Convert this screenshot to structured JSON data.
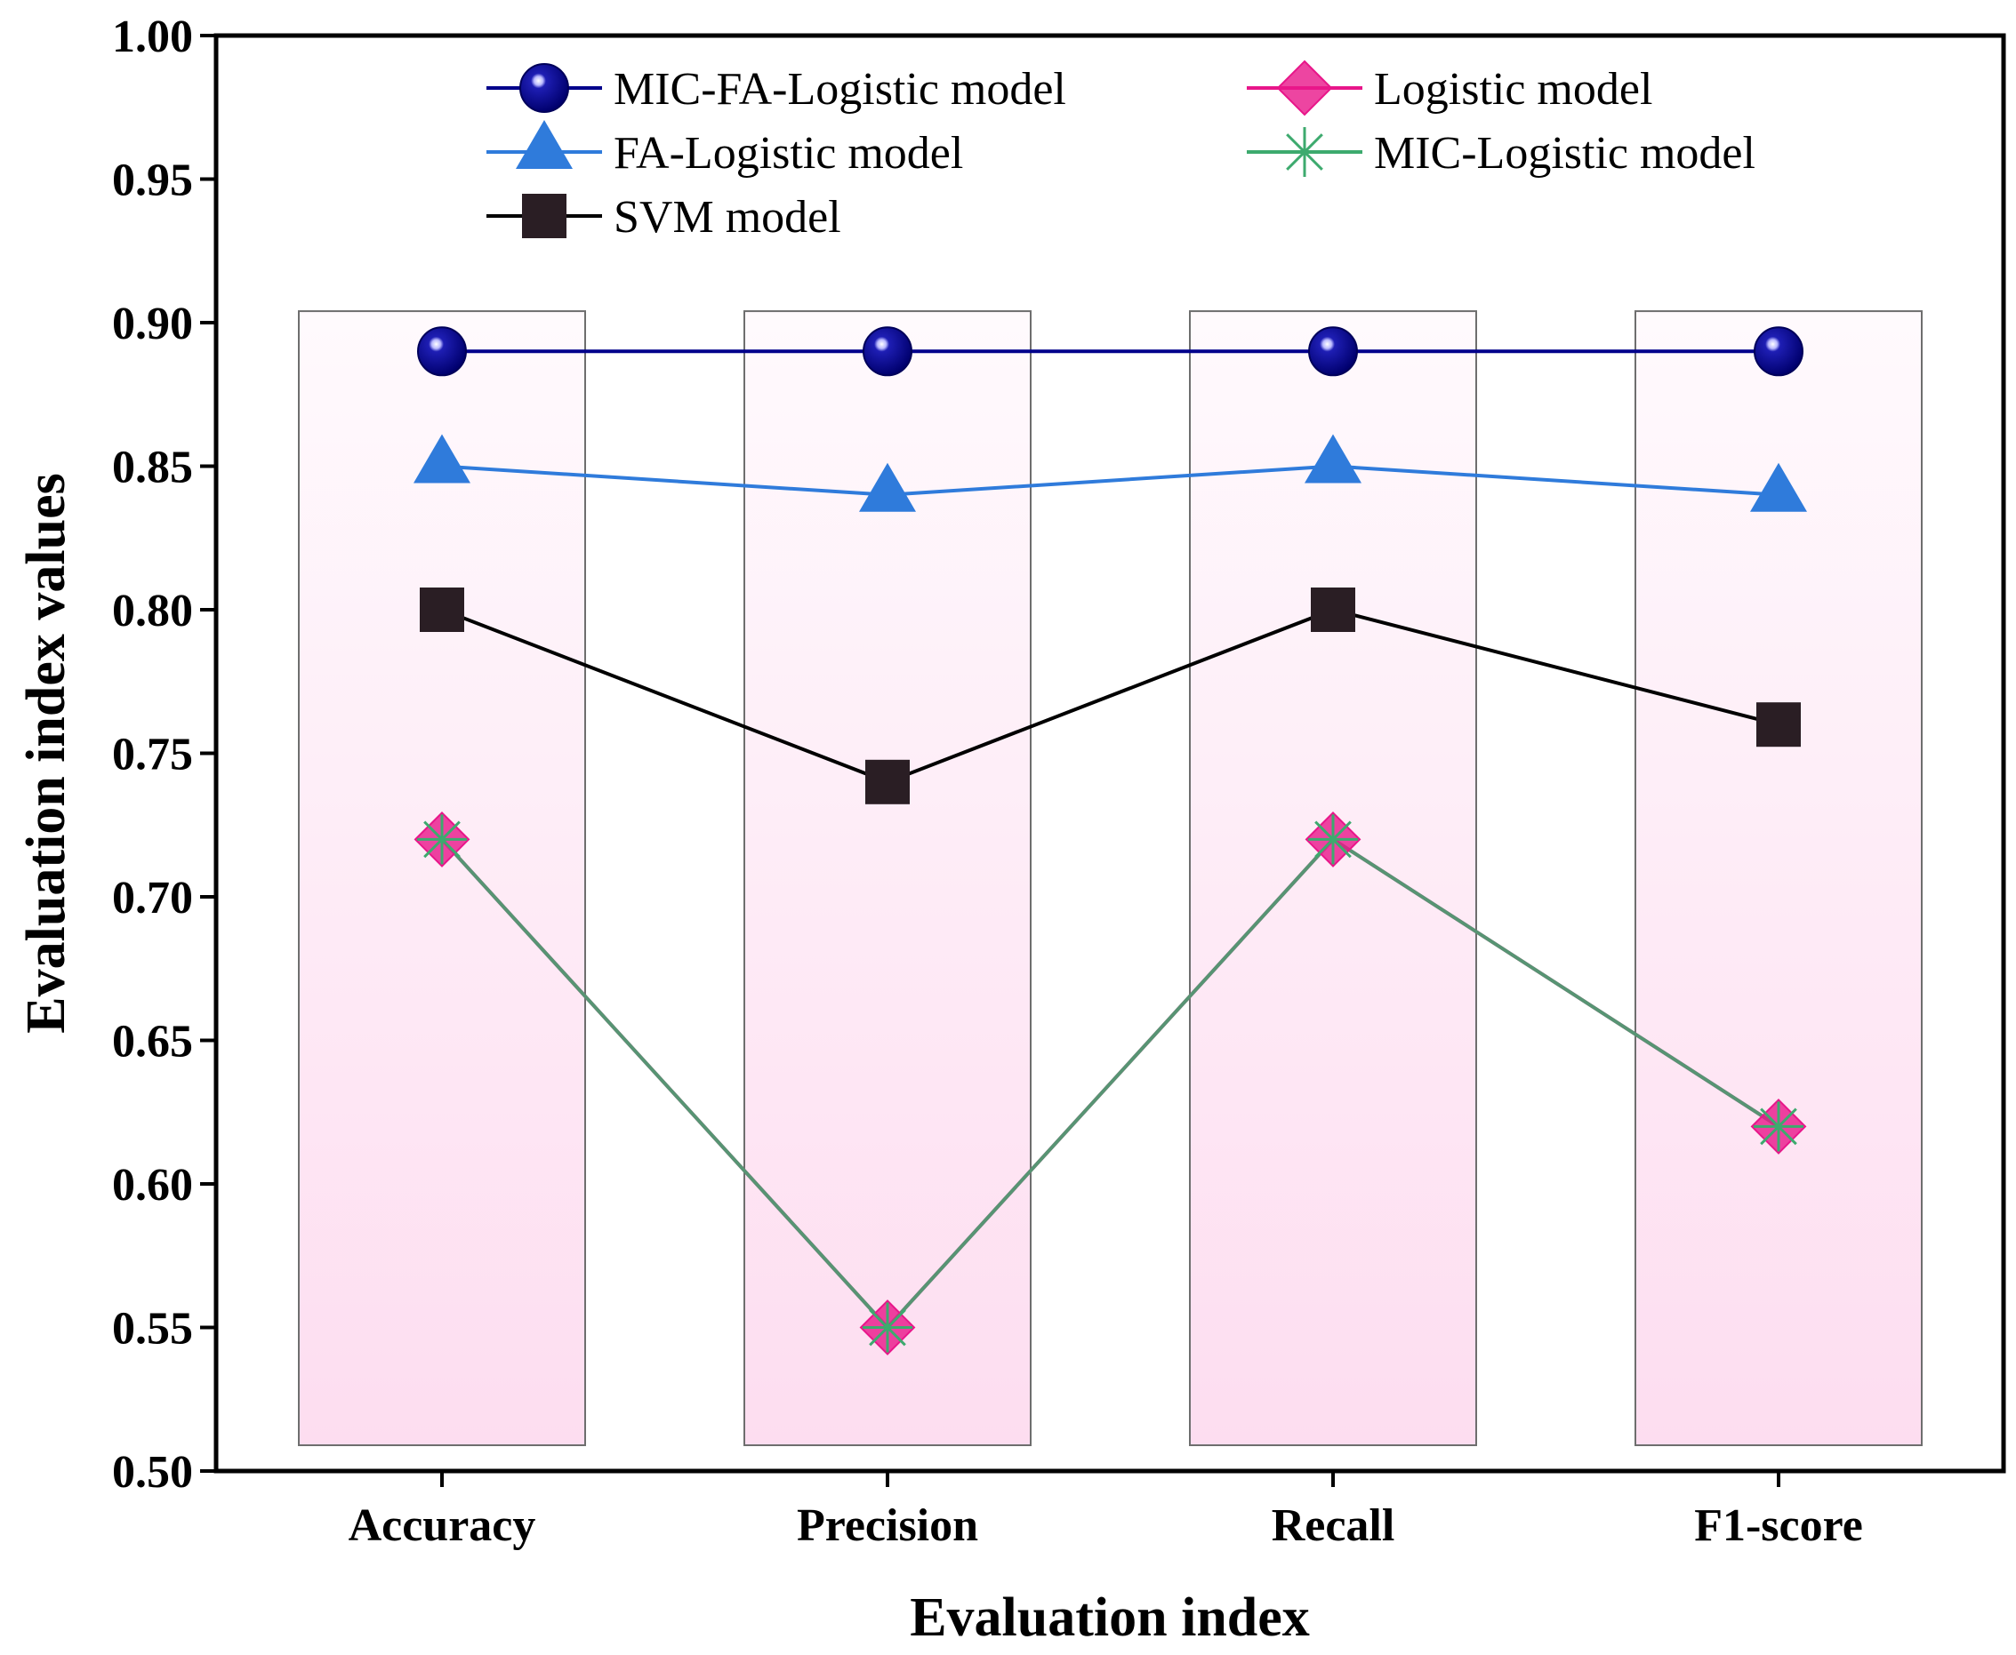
{
  "chart_data": {
    "type": "line",
    "title": "",
    "xlabel": "Evaluation index",
    "ylabel": "Evaluation index values",
    "categories": [
      "Accuracy",
      "Precision",
      "Recall",
      "F1-score"
    ],
    "ylim": [
      0.5,
      1.0
    ],
    "yticks": [
      "0.50",
      "0.55",
      "0.60",
      "0.65",
      "0.70",
      "0.75",
      "0.80",
      "0.85",
      "0.90",
      "0.95",
      "1.00"
    ],
    "background_bars_top": 0.904,
    "grid": false,
    "legend_position": "top",
    "series": [
      {
        "name": "MIC-FA-Logistic model",
        "values": [
          0.89,
          0.89,
          0.89,
          0.89
        ],
        "color": "#00008B",
        "marker": "sphere"
      },
      {
        "name": "Logistic model",
        "values": [
          0.72,
          0.55,
          0.72,
          0.62
        ],
        "color": "#E8168A",
        "marker": "diamond"
      },
      {
        "name": "FA-Logistic model",
        "values": [
          0.85,
          0.84,
          0.85,
          0.84
        ],
        "color": "#2F7BDB",
        "marker": "triangle"
      },
      {
        "name": "MIC-Logistic model",
        "values": [
          0.72,
          0.55,
          0.72,
          0.62
        ],
        "color": "#3DAA6E",
        "marker": "star"
      },
      {
        "name": "SVM model",
        "values": [
          0.8,
          0.74,
          0.8,
          0.76
        ],
        "color": "#000000",
        "marker": "square"
      }
    ],
    "colors": {
      "bar_top": "#FFFAFD",
      "bar_bottom": "#FDDDF0",
      "bar_border": "#6E6E6E",
      "svm_fill": "#2A1E24"
    }
  }
}
